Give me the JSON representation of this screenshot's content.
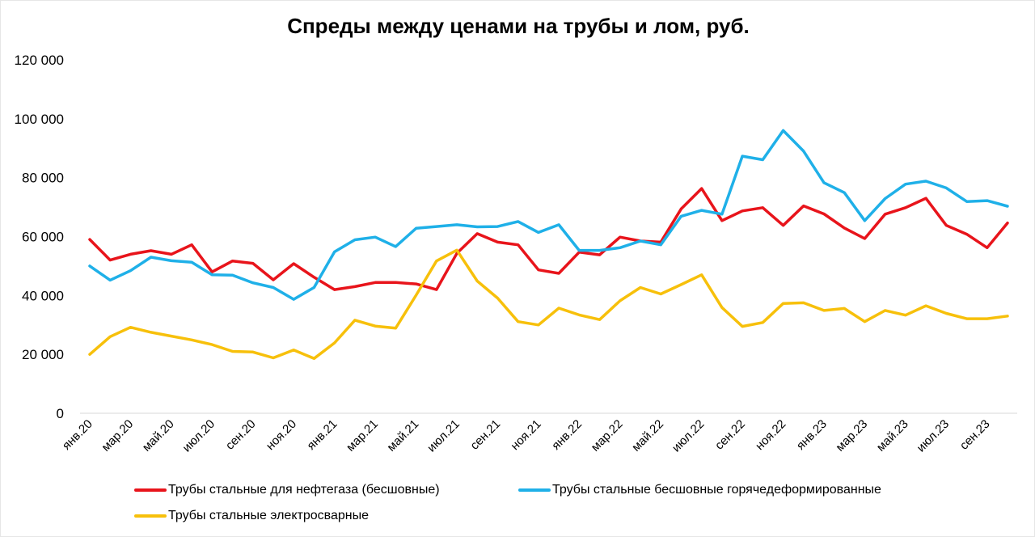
{
  "chart_data": {
    "type": "line",
    "title": "Спреды между ценами на трубы и лом, руб.",
    "xlabel": "",
    "ylabel": "",
    "ylim": [
      0,
      120000
    ],
    "y_ticks": [
      0,
      20000,
      40000,
      60000,
      80000,
      100000,
      120000
    ],
    "y_tick_labels": [
      "0",
      "20 000",
      "40 000",
      "60 000",
      "80 000",
      "100 000",
      "120 000"
    ],
    "grid": false,
    "legend_position": "bottom",
    "x": [
      "янв.20",
      "фев.20",
      "мар.20",
      "апр.20",
      "май.20",
      "июн.20",
      "июл.20",
      "авг.20",
      "сен.20",
      "окт.20",
      "ноя.20",
      "дек.20",
      "янв.21",
      "фев.21",
      "мар.21",
      "апр.21",
      "май.21",
      "июн.21",
      "июл.21",
      "авг.21",
      "сен.21",
      "окт.21",
      "ноя.21",
      "дек.21",
      "янв.22",
      "фев.22",
      "мар.22",
      "апр.22",
      "май.22",
      "июн.22",
      "июл.22",
      "авг.22",
      "сен.22",
      "окт.22",
      "ноя.22",
      "дек.22",
      "янв.23",
      "фев.23",
      "мар.23",
      "апр.23",
      "май.23",
      "июн.23",
      "июл.23",
      "авг.23",
      "сен.23",
      "окт.23"
    ],
    "x_tick_labels": [
      "янв.20",
      "мар.20",
      "май.20",
      "июл.20",
      "сен.20",
      "ноя.20",
      "янв.21",
      "мар.21",
      "май.21",
      "июл.21",
      "сен.21",
      "ноя.21",
      "янв.22",
      "мар.22",
      "май.22",
      "июл.22",
      "сен.22",
      "ноя.22",
      "янв.23",
      "мар.23",
      "май.23",
      "июл.23",
      "сен.23"
    ],
    "series": [
      {
        "name": "Трубы стальные для нефтегаза (бесшовные)",
        "color": "#e8141b",
        "values": [
          59000,
          52000,
          54000,
          55200,
          54000,
          57200,
          48000,
          51700,
          50900,
          45300,
          50800,
          46200,
          42000,
          43000,
          44400,
          44400,
          43900,
          42000,
          54300,
          61000,
          58100,
          57200,
          48700,
          47500,
          54700,
          53800,
          59800,
          58500,
          58100,
          69400,
          76300,
          65400,
          68700,
          69800,
          63800,
          70400,
          67700,
          62900,
          59300,
          67600,
          69800,
          73000,
          63800,
          60800,
          56200,
          64600
        ]
      },
      {
        "name": "Трубы стальные бесшовные горячедеформированные",
        "color": "#1fb0e8",
        "values": [
          50000,
          45200,
          48400,
          53000,
          51800,
          51300,
          47000,
          46900,
          44300,
          42700,
          38700,
          42700,
          54800,
          58900,
          59800,
          56600,
          62800,
          63400,
          64000,
          63300,
          63400,
          65100,
          61400,
          64000,
          55300,
          55300,
          56200,
          58500,
          57200,
          66900,
          68900,
          67600,
          87300,
          86100,
          96000,
          89000,
          78300,
          74900,
          65400,
          72900,
          77800,
          78800,
          76500,
          71900,
          72200,
          70300
        ]
      },
      {
        "name": "Трубы стальные электросварные",
        "color": "#f7c00b",
        "values": [
          20000,
          26000,
          29200,
          27500,
          26200,
          24900,
          23300,
          21000,
          20800,
          18800,
          21500,
          18600,
          23900,
          31600,
          29600,
          28900,
          40100,
          51700,
          55400,
          44900,
          39100,
          31100,
          30000,
          35700,
          33400,
          31800,
          38200,
          42700,
          40500,
          43700,
          47000,
          35900,
          29500,
          30800,
          37300,
          37500,
          34900,
          35600,
          31100,
          34900,
          33300,
          36500,
          33900,
          32100,
          32100,
          33000
        ]
      }
    ]
  }
}
